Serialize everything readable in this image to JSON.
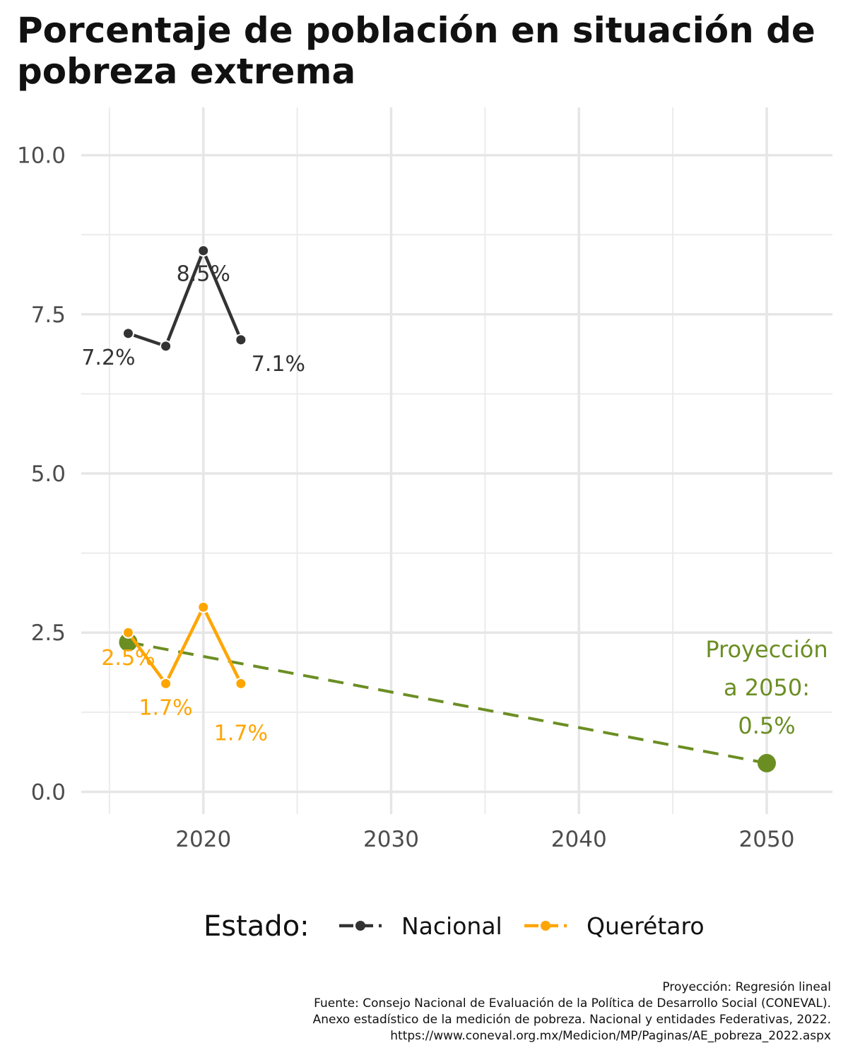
{
  "chart_data": {
    "type": "line",
    "title": "Porcentaje de población en situación de pobreza extrema",
    "xlabel": "",
    "ylabel": "",
    "xlim": [
      2013.5,
      2053.5
    ],
    "ylim": [
      -0.35,
      10.75
    ],
    "x_ticks": [
      2020,
      2030,
      2040,
      2050
    ],
    "x_tick_labels": [
      "2020",
      "2030",
      "2040",
      "2050"
    ],
    "y_ticks": [
      0.0,
      2.5,
      5.0,
      7.5,
      10.0
    ],
    "y_tick_labels": [
      "0.0",
      "2.5",
      "5.0",
      "7.5",
      "10.0"
    ],
    "grid": true,
    "series": [
      {
        "name": "Nacional",
        "color": "#333333",
        "x": [
          2016,
          2018,
          2020,
          2022
        ],
        "values": [
          7.2,
          7.0,
          8.5,
          7.1
        ],
        "point_labels": [
          "7.2%",
          "",
          "8.5%",
          "7.1%"
        ]
      },
      {
        "name": "Querétaro",
        "color": "#FFA500",
        "x": [
          2016,
          2018,
          2020,
          2022
        ],
        "values": [
          2.5,
          1.7,
          2.9,
          1.7
        ],
        "point_labels": [
          "2.5%",
          "1.7%",
          "",
          "1.7%"
        ]
      }
    ],
    "projection": {
      "color": "#6B8E23",
      "x": [
        2016,
        2050
      ],
      "values": [
        2.35,
        0.45
      ],
      "label_lines": [
        "Proyección",
        "a 2050:",
        "0.5%"
      ]
    },
    "legend": {
      "title": "Estado:",
      "position": "bottom",
      "items": [
        "Nacional",
        "Querétaro"
      ]
    }
  },
  "captions": [
    "Proyección: Regresión lineal",
    "Fuente: Consejo Nacional de Evaluación de la Política de Desarrollo Social (CONEVAL).",
    "Anexo estadístico de la medición de pobreza. Nacional y entidades Federativas, 2022.",
    "https://www.coneval.org.mx/Medicion/MP/Paginas/AE_pobreza_2022.aspx"
  ]
}
